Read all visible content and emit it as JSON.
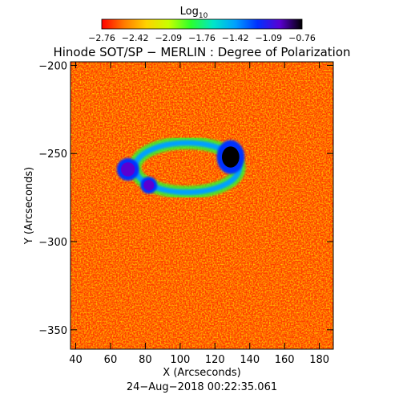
{
  "chart_data": {
    "type": "heatmap",
    "title": "Hinode SOT/SP − MERLIN : Degree of Polarization",
    "colorbar": {
      "label": "Log",
      "label_subscript": "10",
      "ticks": [
        "−2.76",
        "−2.42",
        "−2.09",
        "−1.76",
        "−1.42",
        "−1.09",
        "−0.76"
      ],
      "range": [
        -2.76,
        -0.76
      ],
      "colormap": [
        "#ff0000",
        "#ff7a00",
        "#ffd200",
        "#c8ff00",
        "#2cff2c",
        "#00e6c8",
        "#00a0ff",
        "#0030ff",
        "#5a00d2",
        "#000000"
      ]
    },
    "xlabel": "X (Arcseconds)",
    "ylabel": "Y (Arcseconds)",
    "xlim": [
      37,
      188
    ],
    "ylim": [
      -361,
      -198
    ],
    "xticks": [
      "40",
      "60",
      "80",
      "100",
      "120",
      "140",
      "160",
      "180"
    ],
    "yticks": [
      "−200",
      "−250",
      "−300",
      "−350"
    ],
    "timestamp": "24−Aug−2018 00:22:35.061",
    "features": [
      {
        "name": "ring",
        "cx": 104,
        "cy": -258,
        "rx": 30,
        "ry": 14,
        "value": -1.45
      },
      {
        "name": "core1",
        "cx": 129,
        "cy": -252,
        "rx": 5,
        "ry": 6,
        "value": -0.8
      },
      {
        "name": "core2",
        "cx": 70,
        "cy": -259,
        "rx": 4,
        "ry": 4,
        "value": -1.0
      },
      {
        "name": "core3",
        "cx": 82,
        "cy": -268,
        "rx": 3,
        "ry": 3,
        "value": -1.05
      }
    ]
  }
}
